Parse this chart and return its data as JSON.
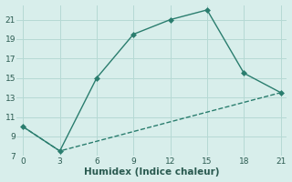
{
  "line1_x": [
    0,
    3,
    6,
    9,
    12,
    15,
    18,
    21
  ],
  "line1_y": [
    10,
    7.5,
    15,
    19.5,
    21,
    22,
    15.5,
    13.5
  ],
  "line2_x": [
    0,
    3,
    21
  ],
  "line2_y": [
    10,
    7.5,
    13.5
  ],
  "line_color": "#2a7d6e",
  "bg_color": "#d8eeeb",
  "grid_color": "#b5d9d4",
  "xlabel": "Humidex (Indice chaleur)",
  "xlim": [
    -0.5,
    21.5
  ],
  "ylim": [
    7,
    22.5
  ],
  "xticks": [
    0,
    3,
    6,
    9,
    12,
    15,
    18,
    21
  ],
  "yticks": [
    7,
    9,
    11,
    13,
    15,
    17,
    19,
    21
  ],
  "font_color": "#2a5a50",
  "marker": "D",
  "markersize": 3,
  "linewidth": 1.0,
  "tick_fontsize": 6.5,
  "xlabel_fontsize": 7.5
}
